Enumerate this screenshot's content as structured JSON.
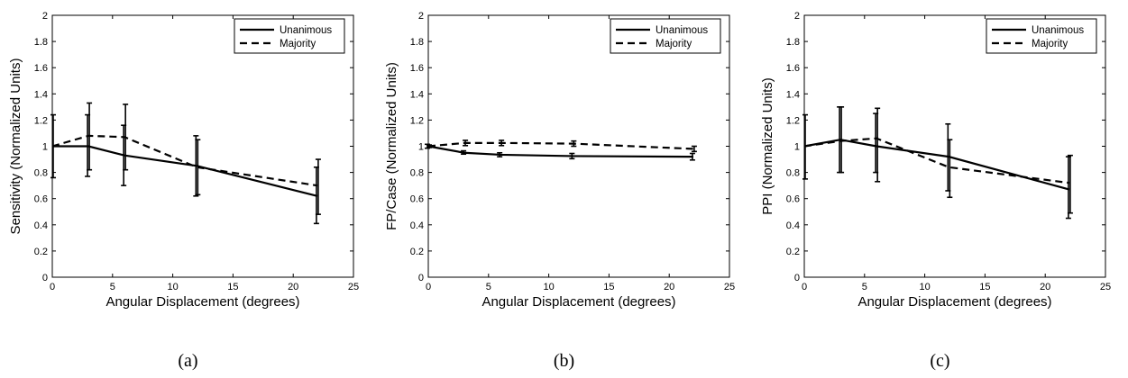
{
  "panels": [
    {
      "caption": "(a)",
      "chart_data": {
        "type": "line",
        "xlabel": "Angular Displacement (degrees)",
        "ylabel": "Sensitivity (Normalized Units)",
        "xlim": [
          0,
          25
        ],
        "ylim": [
          0,
          2
        ],
        "xticks": [
          "0",
          "5",
          "10",
          "15",
          "20",
          "25"
        ],
        "yticks": [
          "0",
          "0.2",
          "0.4",
          "0.6",
          "0.8",
          "1",
          "1.2",
          "1.4",
          "1.6",
          "1.8",
          "2"
        ],
        "legend": "top-right",
        "grid": false,
        "series": [
          {
            "name": "Unanimous",
            "style": "solid",
            "x": [
              0,
              3,
              6,
              12,
              22
            ],
            "y": [
              1.0,
              1.0,
              0.93,
              0.85,
              0.62
            ],
            "err_low": [
              1.0,
              0.77,
              0.7,
              0.62,
              0.41
            ],
            "err_high": [
              1.0,
              1.24,
              1.16,
              1.08,
              0.84
            ]
          },
          {
            "name": "Majority",
            "style": "dashed",
            "x": [
              0,
              3,
              6,
              12,
              22
            ],
            "y": [
              1.0,
              1.08,
              1.07,
              0.84,
              0.7
            ],
            "err_low": [
              0.76,
              0.82,
              0.82,
              0.63,
              0.48
            ],
            "err_high": [
              1.24,
              1.33,
              1.32,
              1.05,
              0.9
            ]
          }
        ]
      }
    },
    {
      "caption": "(b)",
      "chart_data": {
        "type": "line",
        "xlabel": "Angular Displacement (degrees)",
        "ylabel": "FP/Case (Normalized Units)",
        "xlim": [
          0,
          25
        ],
        "ylim": [
          0,
          2
        ],
        "xticks": [
          "0",
          "5",
          "10",
          "15",
          "20",
          "25"
        ],
        "yticks": [
          "0",
          "0.2",
          "0.4",
          "0.6",
          "0.8",
          "1",
          "1.2",
          "1.4",
          "1.6",
          "1.8",
          "2"
        ],
        "legend": "top-right",
        "grid": false,
        "series": [
          {
            "name": "Unanimous",
            "style": "solid",
            "x": [
              0,
              3,
              6,
              12,
              22
            ],
            "y": [
              1.0,
              0.95,
              0.935,
              0.925,
              0.92
            ],
            "err_low": [
              0.985,
              0.94,
              0.92,
              0.905,
              0.895
            ],
            "err_high": [
              1.015,
              0.965,
              0.95,
              0.945,
              0.945
            ]
          },
          {
            "name": "Majority",
            "style": "dashed",
            "x": [
              0,
              3,
              6,
              12,
              22
            ],
            "y": [
              1.0,
              1.025,
              1.025,
              1.02,
              0.98
            ],
            "err_low": [
              0.99,
              1.005,
              1.005,
              1.0,
              0.96
            ],
            "err_high": [
              1.01,
              1.045,
              1.045,
              1.04,
              1.0
            ]
          }
        ]
      }
    },
    {
      "caption": "(c)",
      "chart_data": {
        "type": "line",
        "xlabel": "Angular Displacement (degrees)",
        "ylabel": "PPI (Normalized Units)",
        "xlim": [
          0,
          25
        ],
        "ylim": [
          0,
          2
        ],
        "xticks": [
          "0",
          "5",
          "10",
          "15",
          "20",
          "25"
        ],
        "yticks": [
          "0",
          "0.2",
          "0.4",
          "0.6",
          "0.8",
          "1",
          "1.2",
          "1.4",
          "1.6",
          "1.8",
          "2"
        ],
        "legend": "top-right",
        "grid": false,
        "series": [
          {
            "name": "Unanimous",
            "style": "solid",
            "x": [
              0,
              3,
              6,
              12,
              22
            ],
            "y": [
              1.0,
              1.05,
              1.0,
              0.92,
              0.67
            ],
            "err_low": [
              1.0,
              0.8,
              0.8,
              0.66,
              0.45
            ],
            "err_high": [
              1.0,
              1.3,
              1.25,
              1.17,
              0.92
            ]
          },
          {
            "name": "Majority",
            "style": "dashed",
            "x": [
              0,
              3,
              6,
              12,
              22
            ],
            "y": [
              1.0,
              1.04,
              1.06,
              0.84,
              0.72
            ],
            "err_low": [
              0.75,
              0.8,
              0.73,
              0.61,
              0.49
            ],
            "err_high": [
              1.24,
              1.3,
              1.29,
              1.05,
              0.93
            ]
          }
        ]
      }
    }
  ]
}
